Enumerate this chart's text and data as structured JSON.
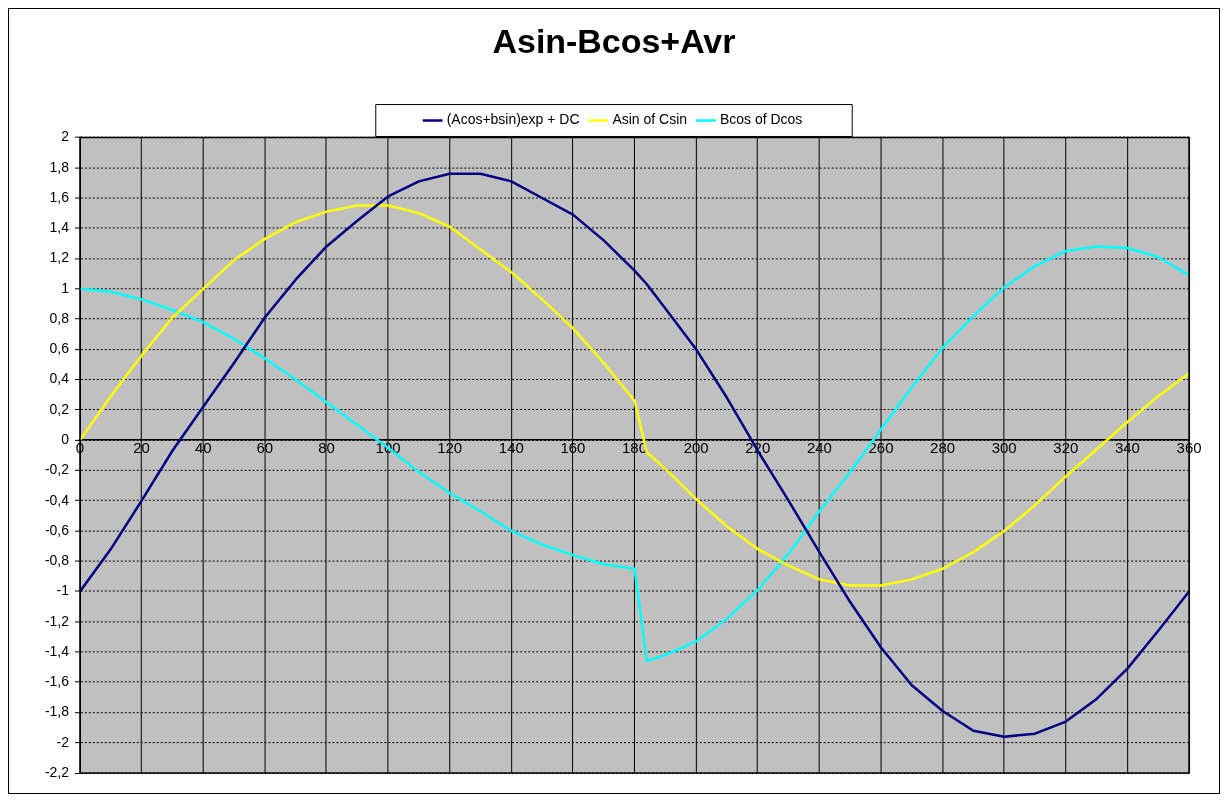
{
  "chart_data": {
    "type": "line",
    "title": "Asin-Bcos+Avr",
    "x": [
      0,
      10,
      20,
      30,
      40,
      50,
      60,
      70,
      80,
      90,
      100,
      110,
      120,
      130,
      140,
      150,
      160,
      170,
      180,
      184,
      190,
      200,
      210,
      220,
      230,
      240,
      250,
      260,
      270,
      280,
      290,
      300,
      310,
      320,
      330,
      340,
      350,
      360
    ],
    "series": [
      {
        "name": "(Acos+bsin)exp + DC",
        "color": "#000080",
        "values": [
          -1.0,
          -0.72,
          -0.4,
          -0.07,
          0.22,
          0.51,
          0.81,
          1.06,
          1.28,
          1.45,
          1.61,
          1.71,
          1.76,
          1.76,
          1.71,
          1.6,
          1.49,
          1.32,
          1.12,
          1.03,
          0.87,
          0.6,
          0.28,
          -0.07,
          -0.4,
          -0.74,
          -1.07,
          -1.37,
          -1.62,
          -1.79,
          -1.92,
          -1.96,
          -1.94,
          -1.86,
          -1.71,
          -1.51,
          -1.26,
          -1.0
        ]
      },
      {
        "name": "Asin of Csin",
        "color": "#ffff00",
        "values": [
          0.0,
          0.29,
          0.56,
          0.81,
          1.0,
          1.19,
          1.33,
          1.44,
          1.51,
          1.55,
          1.55,
          1.5,
          1.41,
          1.26,
          1.11,
          0.93,
          0.74,
          0.51,
          0.26,
          -0.08,
          -0.19,
          -0.39,
          -0.57,
          -0.72,
          -0.83,
          -0.92,
          -0.96,
          -0.96,
          -0.92,
          -0.85,
          -0.74,
          -0.6,
          -0.43,
          -0.24,
          -0.06,
          0.12,
          0.29,
          0.44
        ]
      },
      {
        "name": "Bcos of Dcos",
        "color": "#00ffff",
        "values": [
          1.0,
          0.98,
          0.93,
          0.86,
          0.78,
          0.67,
          0.54,
          0.4,
          0.25,
          0.1,
          -0.05,
          -0.21,
          -0.35,
          -0.47,
          -0.6,
          -0.69,
          -0.76,
          -0.82,
          -0.85,
          -1.46,
          -1.42,
          -1.33,
          -1.18,
          -0.99,
          -0.75,
          -0.47,
          -0.21,
          0.07,
          0.35,
          0.61,
          0.82,
          1.01,
          1.15,
          1.25,
          1.28,
          1.27,
          1.21,
          1.09
        ]
      }
    ],
    "xlim": [
      0,
      360
    ],
    "xticks": [
      0,
      20,
      40,
      60,
      80,
      100,
      120,
      140,
      160,
      180,
      200,
      220,
      240,
      260,
      280,
      300,
      320,
      340,
      360
    ],
    "ylim": [
      -2.2,
      2
    ],
    "yticks": [
      2,
      {
        "value": 1.8,
        "label": "1,8"
      },
      {
        "value": 1.6,
        "label": "1,6"
      },
      {
        "value": 1.4,
        "label": "1,4"
      },
      {
        "value": 1.2,
        "label": "1,2"
      },
      1,
      {
        "value": 0.8,
        "label": "0,8"
      },
      {
        "value": 0.6,
        "label": "0,6"
      },
      {
        "value": 0.4,
        "label": "0,4"
      },
      {
        "value": 0.2,
        "label": "0,2"
      },
      0,
      {
        "value": -0.2,
        "label": "-0,2"
      },
      {
        "value": -0.4,
        "label": "-0,4"
      },
      {
        "value": -0.6,
        "label": "-0,6"
      },
      {
        "value": -0.8,
        "label": "-0,8"
      },
      -1,
      {
        "value": -1.2,
        "label": "-1,2"
      },
      {
        "value": -1.4,
        "label": "-1,4"
      },
      {
        "value": -1.6,
        "label": "-1,6"
      },
      {
        "value": -1.8,
        "label": "-1,8"
      },
      -2,
      {
        "value": -2.2,
        "label": "-2,2"
      }
    ],
    "grid": true,
    "legend": "top",
    "marker": "none",
    "line_style": "solid"
  }
}
